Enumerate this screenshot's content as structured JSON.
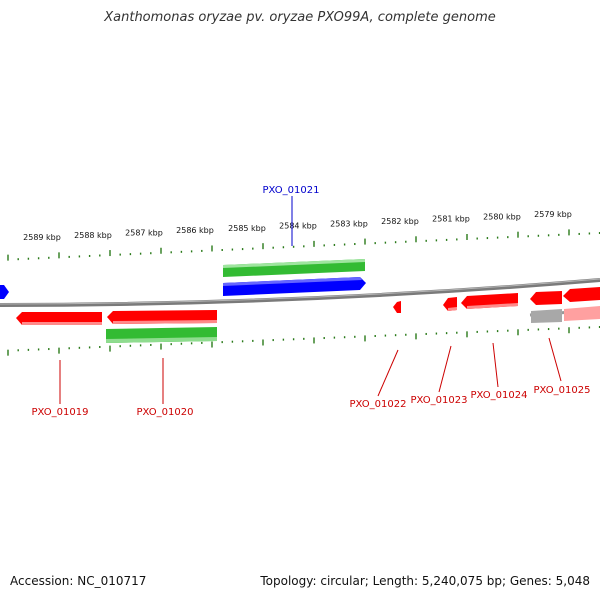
{
  "title": "Xanthomonas oryzae pv. oryzae PXO99A, complete genome",
  "footer": {
    "accession": "Accession: NC_010717",
    "stats": "Topology: circular; Length: 5,240,075 bp; Genes: 5,048"
  },
  "kbp_labels": [
    "2589 kbp",
    "2588 kbp",
    "2587 kbp",
    "2586 kbp",
    "2585 kbp",
    "2584 kbp",
    "2583 kbp",
    "2582 kbp",
    "2581 kbp",
    "2580 kbp",
    "2579 kbp"
  ],
  "gene_labels": [
    {
      "name": "PXO_01021",
      "color": "#0000cc"
    },
    {
      "name": "PXO_01019",
      "color": "#cc0000"
    },
    {
      "name": "PXO_01020",
      "color": "#cc0000"
    },
    {
      "name": "PXO_01022",
      "color": "#cc0000"
    },
    {
      "name": "PXO_01023",
      "color": "#cc0000"
    },
    {
      "name": "PXO_01024",
      "color": "#cc0000"
    },
    {
      "name": "PXO_01025",
      "color": "#cc0000"
    }
  ],
  "colors": {
    "forward_cds": "#0000ff",
    "reverse_cds": "#ff0000",
    "rna": "#33bb33",
    "pseudo": "#b0b0b0",
    "tick": "#2a7a1a",
    "backbone": "#888888"
  }
}
